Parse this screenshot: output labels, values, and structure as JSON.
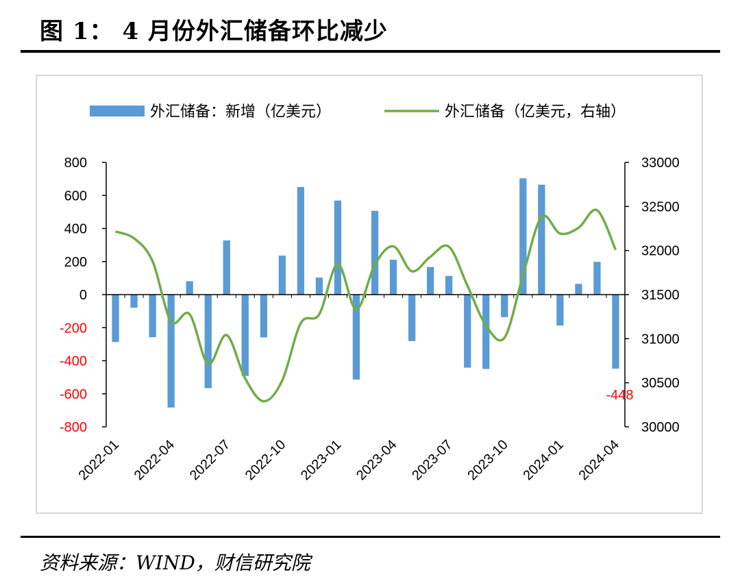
{
  "title": "图 1：  4 月份外汇储备环比减少",
  "source": "资料来源：WIND，财信研究院",
  "chart_data": {
    "type": "bar+line",
    "categories": [
      "2022-01",
      "2022-02",
      "2022-03",
      "2022-04",
      "2022-05",
      "2022-06",
      "2022-07",
      "2022-08",
      "2022-09",
      "2022-10",
      "2022-11",
      "2022-12",
      "2023-01",
      "2023-02",
      "2023-03",
      "2023-04",
      "2023-05",
      "2023-06",
      "2023-07",
      "2023-08",
      "2023-09",
      "2023-10",
      "2023-11",
      "2023-12",
      "2024-01",
      "2024-02",
      "2024-03",
      "2024-04"
    ],
    "x_tick_labels": [
      "2022-01",
      "2022-04",
      "2022-07",
      "2022-10",
      "2023-01",
      "2023-04",
      "2023-07",
      "2023-10",
      "2024-01",
      "2024-04"
    ],
    "series": [
      {
        "name": "外汇储备：新增（亿美元）",
        "type": "bar",
        "axis": "left",
        "color": "#5b9bd5",
        "values": [
          -287,
          -79,
          -258,
          -683,
          81,
          -566,
          328,
          -492,
          -259,
          236,
          651,
          103,
          569,
          -514,
          507,
          211,
          -281,
          167,
          113,
          -442,
          -450,
          -136,
          704,
          665,
          -187,
          65,
          198,
          -448
        ]
      },
      {
        "name": "外汇储备（亿美元，右轴）",
        "type": "line",
        "axis": "right",
        "color": "#70ad47",
        "values": [
          32216,
          32138,
          31880,
          31197,
          31278,
          30713,
          31041,
          30549,
          30290,
          30524,
          31175,
          31277,
          31845,
          31331,
          31838,
          32048,
          31765,
          31930,
          32043,
          31601,
          31151,
          31012,
          31718,
          32380,
          32193,
          32258,
          32457,
          32008
        ]
      }
    ],
    "left_axis": {
      "min": -800,
      "max": 800,
      "step": 200,
      "negative_label_color": "#ff0000"
    },
    "right_axis": {
      "min": 30000,
      "max": 33000,
      "step": 500
    },
    "annotation": {
      "text": "-448",
      "color": "#ff0000"
    },
    "legend_position": "top"
  }
}
